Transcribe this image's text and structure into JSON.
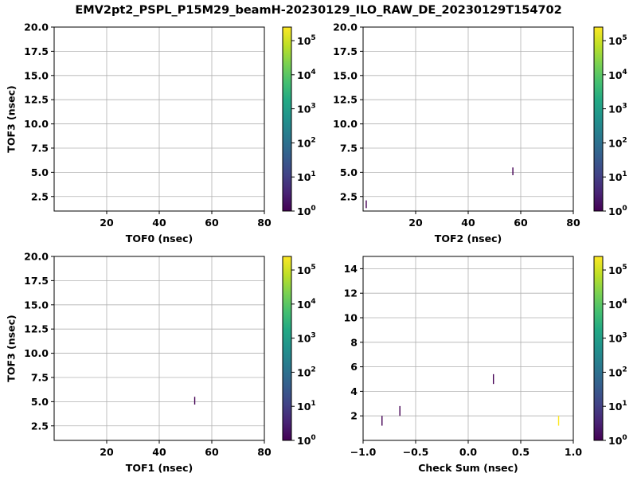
{
  "figure_title": "EMV2pt2_PSPL_P15M29_beamH-20230129_ILO_RAW_DE_20230129T154702",
  "colormap": {
    "name": "viridis",
    "colors": [
      "#440154",
      "#482475",
      "#414487",
      "#355f8d",
      "#2a788e",
      "#21918c",
      "#22a884",
      "#44bf70",
      "#7ad151",
      "#bddf26",
      "#fde725"
    ],
    "min": 1,
    "max": 250000,
    "scale": "log",
    "tick_labels": [
      {
        "base": "10",
        "exp": "0",
        "value": 1
      },
      {
        "base": "10",
        "exp": "1",
        "value": 10
      },
      {
        "base": "10",
        "exp": "2",
        "value": 100
      },
      {
        "base": "10",
        "exp": "3",
        "value": 1000
      },
      {
        "base": "10",
        "exp": "4",
        "value": 10000
      },
      {
        "base": "10",
        "exp": "5",
        "value": 100000
      }
    ]
  },
  "chart_data": [
    {
      "type": "heatmap",
      "xlabel": "TOF0 (nsec)",
      "ylabel": "TOF3 (nsec)",
      "xlim": [
        0,
        80
      ],
      "ylim": [
        1,
        20
      ],
      "xticks": [
        20,
        40,
        60,
        80
      ],
      "xtick_labels": [
        "20",
        "40",
        "60",
        "80"
      ],
      "yticks": [
        2.5,
        5,
        7.5,
        10,
        12.5,
        15,
        17.5,
        20
      ],
      "ytick_labels": [
        "2.5",
        "5.0",
        "7.5",
        "10.0",
        "12.5",
        "15.0",
        "17.5",
        "20.0"
      ],
      "grid": true,
      "colorbar": true,
      "bins": []
    },
    {
      "type": "heatmap",
      "xlabel": "TOF2 (nsec)",
      "ylabel": "",
      "xlim": [
        0,
        80
      ],
      "ylim": [
        1,
        20
      ],
      "xticks": [
        20,
        40,
        60,
        80
      ],
      "xtick_labels": [
        "20",
        "40",
        "60",
        "80"
      ],
      "yticks": [
        2.5,
        5,
        7.5,
        10,
        12.5,
        15,
        17.5,
        20
      ],
      "ytick_labels": [
        "2.5",
        "5.0",
        "7.5",
        "10.0",
        "12.5",
        "15.0",
        "17.5",
        "20.0"
      ],
      "grid": true,
      "colorbar": true,
      "bins": [
        {
          "x": 1.2,
          "y": [
            1.3,
            2.1
          ],
          "count": 1
        },
        {
          "x": 57,
          "y": [
            4.7,
            5.5
          ],
          "count": 1
        }
      ]
    },
    {
      "type": "heatmap",
      "xlabel": "TOF1 (nsec)",
      "ylabel": "TOF3 (nsec)",
      "xlim": [
        0,
        80
      ],
      "ylim": [
        1,
        20
      ],
      "xticks": [
        20,
        40,
        60,
        80
      ],
      "xtick_labels": [
        "20",
        "40",
        "60",
        "80"
      ],
      "yticks": [
        2.5,
        5,
        7.5,
        10,
        12.5,
        15,
        17.5,
        20
      ],
      "ytick_labels": [
        "2.5",
        "5.0",
        "7.5",
        "10.0",
        "12.5",
        "15.0",
        "17.5",
        "20.0"
      ],
      "grid": true,
      "colorbar": true,
      "bins": [
        {
          "x": 53.5,
          "y": [
            4.7,
            5.5
          ],
          "count": 1
        }
      ]
    },
    {
      "type": "heatmap",
      "xlabel": "Check Sum (nsec)",
      "ylabel": "",
      "xlim": [
        -1,
        1
      ],
      "ylim": [
        0,
        15
      ],
      "xticks": [
        -1,
        -0.5,
        0,
        0.5,
        1
      ],
      "xtick_labels": [
        "−1.0",
        "−0.5",
        "0.0",
        "0.5",
        "1.0"
      ],
      "yticks": [
        2,
        4,
        6,
        8,
        10,
        12,
        14
      ],
      "ytick_labels": [
        "2",
        "4",
        "6",
        "8",
        "10",
        "12",
        "14"
      ],
      "grid": true,
      "colorbar": true,
      "bins": [
        {
          "x": -0.82,
          "y": [
            1.2,
            2.0
          ],
          "count": 1
        },
        {
          "x": -0.65,
          "y": [
            2.0,
            2.8
          ],
          "count": 1
        },
        {
          "x": 0.24,
          "y": [
            4.6,
            5.4
          ],
          "count": 1
        },
        {
          "x": 0.86,
          "y": [
            1.2,
            2.0
          ],
          "count": 250000
        }
      ]
    }
  ]
}
